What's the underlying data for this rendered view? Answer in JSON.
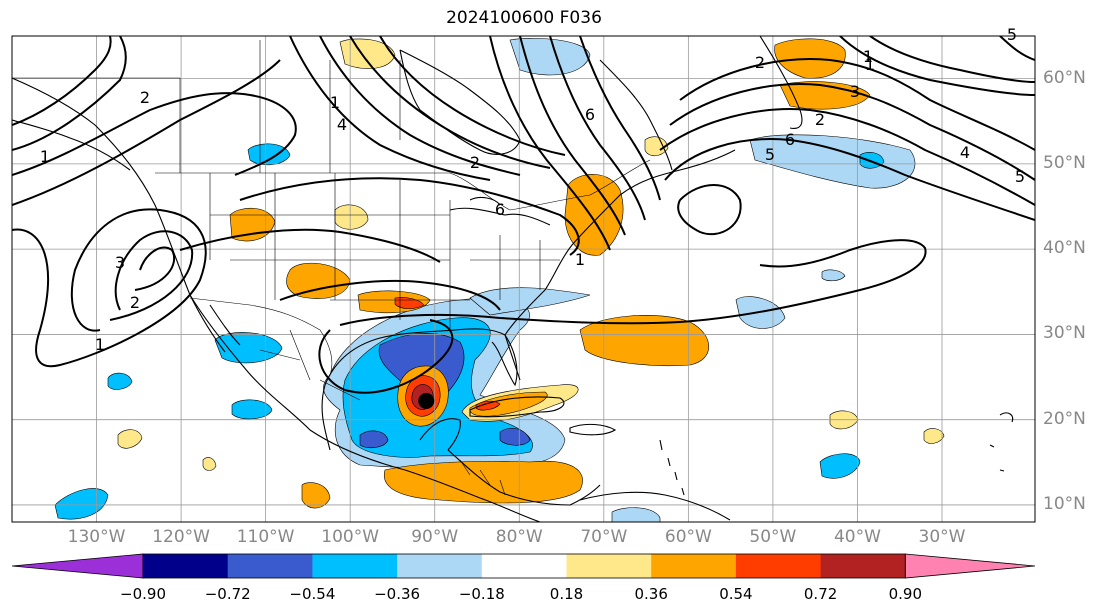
{
  "title": "2024100600 F036",
  "map": {
    "lon_range": [
      -140,
      -19
    ],
    "lat_range": [
      8,
      65
    ],
    "graticule_lon": [
      -130,
      -120,
      -110,
      -100,
      -90,
      -80,
      -70,
      -60,
      -50,
      -40,
      -30
    ],
    "graticule_lat": [
      10,
      20,
      30,
      40,
      50,
      60
    ],
    "lon_labels": [
      {
        "lon": -130,
        "text": "130°W"
      },
      {
        "lon": -120,
        "text": "120°W"
      },
      {
        "lon": -110,
        "text": "110°W"
      },
      {
        "lon": -100,
        "text": "100°W"
      },
      {
        "lon": -90,
        "text": "90°W"
      },
      {
        "lon": -80,
        "text": "80°W"
      },
      {
        "lon": -70,
        "text": "70°W"
      },
      {
        "lon": -60,
        "text": "60°W"
      },
      {
        "lon": -50,
        "text": "50°W"
      },
      {
        "lon": -40,
        "text": "40°W"
      },
      {
        "lon": -30,
        "text": "30°W"
      }
    ],
    "lat_labels": [
      {
        "lat": 60,
        "text": "60°N"
      },
      {
        "lat": 50,
        "text": "50°N"
      },
      {
        "lat": 40,
        "text": "40°N"
      },
      {
        "lat": 30,
        "text": "30°N"
      },
      {
        "lat": 20,
        "text": "20°N"
      },
      {
        "lat": 10,
        "text": "10°N"
      }
    ],
    "contour_labels": [
      "1",
      "2",
      "3",
      "2",
      "1",
      "1",
      "2",
      "6",
      "6",
      "1",
      "4",
      "5",
      "6",
      "4",
      "5",
      "5",
      "2",
      "1",
      "3",
      "2",
      "1"
    ],
    "storm_center": {
      "lon": -91.0,
      "lat": 22.2
    }
  },
  "colorbar": {
    "colors": [
      "#9b30d9",
      "#00008b",
      "#3a5bcd",
      "#00bfff",
      "#add8f5",
      "#ffffff",
      "#ffe88a",
      "#ffa500",
      "#ff3d00",
      "#b22222",
      "#ff82b0"
    ],
    "ticks": [
      "−0.90",
      "−0.72",
      "−0.54",
      "−0.36",
      "−0.18",
      "0.18",
      "0.36",
      "0.54",
      "0.72",
      "0.90"
    ]
  }
}
